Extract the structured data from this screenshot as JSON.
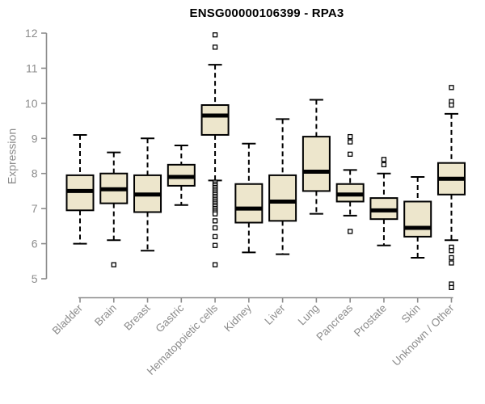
{
  "chart_data": {
    "type": "boxplot",
    "title": "ENSG00000106399 - RPA3",
    "xlabel": "",
    "ylabel": "Expression",
    "ylim": [
      5,
      12
    ],
    "yticks": [
      5,
      6,
      7,
      8,
      9,
      10,
      11,
      12
    ],
    "grid": false,
    "legend": "none",
    "categories": [
      "Bladder",
      "Brain",
      "Breast",
      "Gastric",
      "Hematopoietic cells",
      "Kidney",
      "Liver",
      "Lung",
      "Pancreas",
      "Prostate",
      "Skin",
      "Unknown / Other"
    ],
    "series": [
      {
        "category": "Bladder",
        "whisker_low": 6.0,
        "q1": 6.95,
        "median": 7.5,
        "q3": 7.95,
        "whisker_high": 9.1,
        "outliers": []
      },
      {
        "category": "Brain",
        "whisker_low": 6.1,
        "q1": 7.15,
        "median": 7.55,
        "q3": 8.0,
        "whisker_high": 8.6,
        "outliers": [
          5.4
        ]
      },
      {
        "category": "Breast",
        "whisker_low": 5.8,
        "q1": 6.9,
        "median": 7.4,
        "q3": 7.95,
        "whisker_high": 9.0,
        "outliers": []
      },
      {
        "category": "Gastric",
        "whisker_low": 7.1,
        "q1": 7.65,
        "median": 7.9,
        "q3": 8.25,
        "whisker_high": 8.8,
        "outliers": []
      },
      {
        "category": "Hematopoietic cells",
        "whisker_low": 7.8,
        "q1": 9.1,
        "median": 9.65,
        "q3": 9.95,
        "whisker_high": 11.1,
        "outliers": [
          11.95,
          11.6,
          7.75,
          7.7,
          7.65,
          7.6,
          7.55,
          7.5,
          7.45,
          7.4,
          7.35,
          7.3,
          7.25,
          7.2,
          7.15,
          7.1,
          7.05,
          7.0,
          6.95,
          6.9,
          6.85,
          6.65,
          6.45,
          6.2,
          5.95,
          5.4
        ]
      },
      {
        "category": "Kidney",
        "whisker_low": 5.75,
        "q1": 6.6,
        "median": 7.0,
        "q3": 7.7,
        "whisker_high": 8.85,
        "outliers": []
      },
      {
        "category": "Liver",
        "whisker_low": 5.7,
        "q1": 6.65,
        "median": 7.2,
        "q3": 7.95,
        "whisker_high": 9.55,
        "outliers": []
      },
      {
        "category": "Lung",
        "whisker_low": 6.85,
        "q1": 7.5,
        "median": 8.05,
        "q3": 9.05,
        "whisker_high": 10.1,
        "outliers": []
      },
      {
        "category": "Pancreas",
        "whisker_low": 6.8,
        "q1": 7.2,
        "median": 7.4,
        "q3": 7.7,
        "whisker_high": 8.1,
        "outliers": [
          9.05,
          8.9,
          8.55,
          6.35
        ]
      },
      {
        "category": "Prostate",
        "whisker_low": 5.95,
        "q1": 6.7,
        "median": 6.95,
        "q3": 7.3,
        "whisker_high": 8.0,
        "outliers": [
          8.4,
          8.25
        ]
      },
      {
        "category": "Skin",
        "whisker_low": 5.6,
        "q1": 6.2,
        "median": 6.45,
        "q3": 7.2,
        "whisker_high": 7.9,
        "outliers": []
      },
      {
        "category": "Unknown / Other",
        "whisker_low": 6.1,
        "q1": 7.4,
        "median": 7.85,
        "q3": 8.3,
        "whisker_high": 9.7,
        "outliers": [
          10.45,
          10.05,
          9.95,
          5.9,
          5.8,
          5.6,
          5.45,
          4.85,
          4.75
        ]
      }
    ],
    "colors": {
      "box_fill": "#ede6cc",
      "box_border": "#000000",
      "median": "#000000",
      "whisker": "#000000",
      "outlier_fill": "#ffffff",
      "axis": "#8c8c8c",
      "tick_label": "#8c8c8c",
      "title": "#000000",
      "background": "#ffffff"
    }
  }
}
